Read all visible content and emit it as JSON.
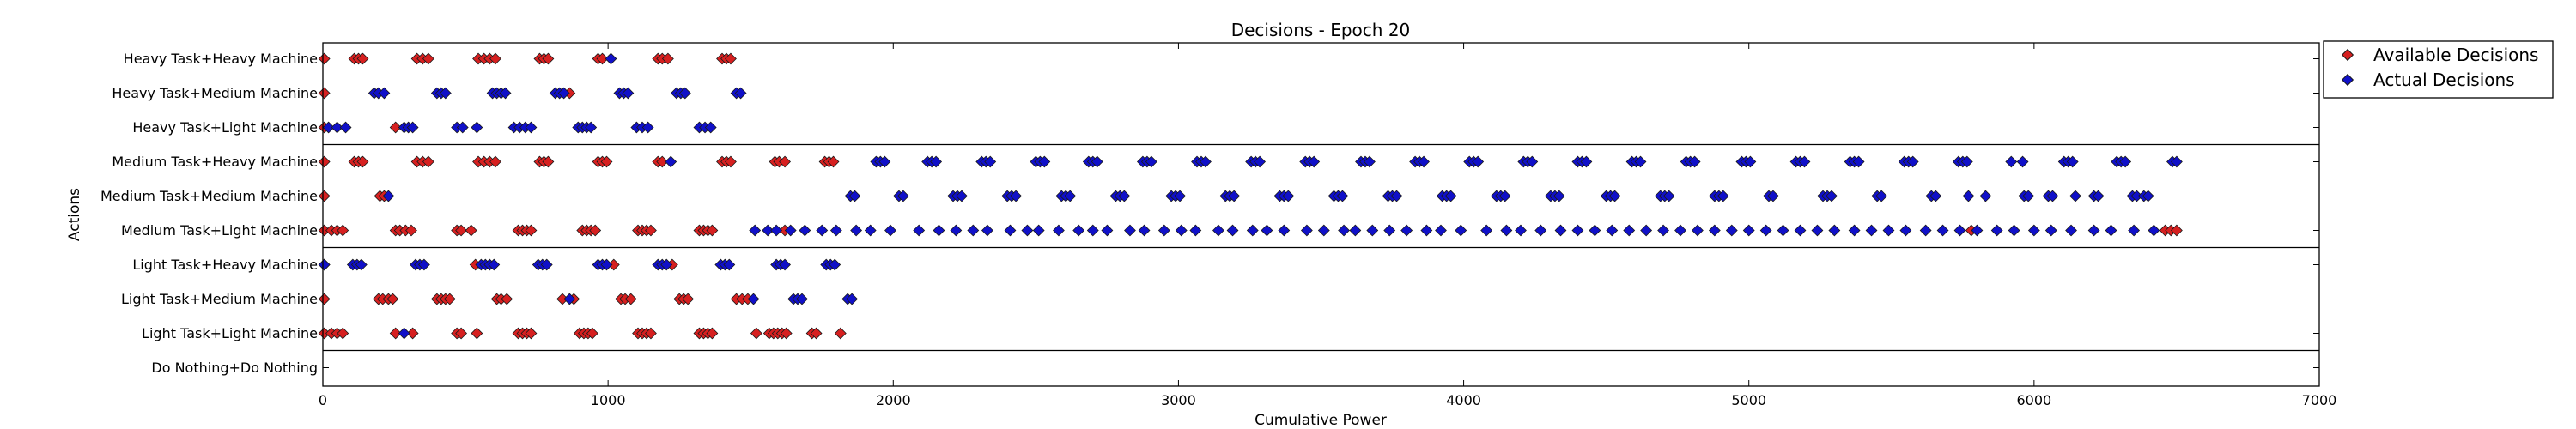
{
  "chart_data": {
    "type": "scatter",
    "title": "Decisions - Epoch 20",
    "xlabel": "Cumulative Power",
    "ylabel": "Actions",
    "xlim": [
      0,
      7000
    ],
    "x_ticks": [
      0,
      1000,
      2000,
      3000,
      4000,
      5000,
      6000,
      7000
    ],
    "categories": [
      "Heavy Task+Heavy Machine",
      "Heavy Task+Medium Machine",
      "Heavy Task+Light Machine",
      "Medium Task+Heavy Machine",
      "Medium Task+Medium Machine",
      "Medium Task+Light Machine",
      "Light Task+Heavy Machine",
      "Light Task+Medium Machine",
      "Light Task+Light Machine",
      "Do Nothing+Do Nothing"
    ],
    "group_separators_after": [
      2,
      5,
      8
    ],
    "legend_position": "outside-right-top",
    "colors": {
      "available": "#d62020",
      "actual": "#1010c8",
      "marker_edge": "#1a1a1a"
    },
    "series": [
      {
        "name": "Available Decisions",
        "points": [
          {
            "cat": 0,
            "x": [
              5,
              110,
              125,
              140,
              330,
              350,
              370,
              545,
              565,
              585,
              605,
              760,
              775,
              790,
              965,
              980,
              1175,
              1190,
              1210,
              1400,
              1415,
              1430
            ]
          },
          {
            "cat": 1,
            "x": [
              5,
              865
            ]
          },
          {
            "cat": 2,
            "x": [
              5,
              255
            ]
          },
          {
            "cat": 3,
            "x": [
              5,
              110,
              125,
              140,
              330,
              350,
              370,
              545,
              565,
              585,
              605,
              760,
              775,
              790,
              965,
              980,
              995,
              1175,
              1190,
              1400,
              1415,
              1430,
              1585,
              1600,
              1620,
              1760,
              1775,
              1790
            ]
          },
          {
            "cat": 4,
            "x": [
              5,
              200,
              215
            ]
          },
          {
            "cat": 5,
            "x": [
              5,
              30,
              50,
              70,
              255,
              270,
              290,
              310,
              470,
              485,
              520,
              685,
              700,
              715,
              730,
              910,
              925,
              940,
              955,
              1105,
              1120,
              1135,
              1150,
              1320,
              1335,
              1350,
              1365,
              1620,
              5780,
              6460,
              6480,
              6500
            ]
          },
          {
            "cat": 6,
            "x": [
              5,
              535,
              1020,
              1225
            ]
          },
          {
            "cat": 7,
            "x": [
              5,
              195,
              210,
              230,
              245,
              400,
              415,
              430,
              445,
              610,
              625,
              645,
              840,
              880,
              1045,
              1060,
              1080,
              1250,
              1265,
              1280,
              1450,
              1470,
              1490
            ]
          },
          {
            "cat": 8,
            "x": [
              5,
              30,
              50,
              70,
              255,
              315,
              470,
              485,
              540,
              685,
              700,
              715,
              730,
              900,
              915,
              930,
              945,
              1105,
              1120,
              1135,
              1150,
              1320,
              1335,
              1350,
              1365,
              1520,
              1565,
              1580,
              1595,
              1610,
              1625,
              1715,
              1730,
              1815
            ]
          }
        ]
      },
      {
        "name": "Actual Decisions",
        "points": [
          {
            "cat": 0,
            "x": [
              1010
            ]
          },
          {
            "cat": 1,
            "x": [
              180,
              195,
              215,
              400,
              415,
              430,
              595,
              610,
              625,
              640,
              815,
              830,
              845,
              1040,
              1055,
              1070,
              1240,
              1255,
              1270,
              1450,
              1465
            ]
          },
          {
            "cat": 2,
            "x": [
              20,
              50,
              80,
              285,
              300,
              315,
              470,
              490,
              540,
              670,
              690,
              710,
              730,
              895,
              910,
              925,
              940,
              1100,
              1120,
              1140,
              1320,
              1340,
              1360
            ]
          },
          {
            "cat": 3,
            "x": [
              1220,
              1940,
              1955,
              1970,
              2120,
              2135,
              2150,
              2310,
              2325,
              2340,
              2500,
              2515,
              2530,
              2685,
              2700,
              2715,
              2875,
              2890,
              2905,
              3065,
              3080,
              3095,
              3255,
              3270,
              3285,
              3445,
              3460,
              3475,
              3640,
              3655,
              3670,
              3830,
              3845,
              3860,
              4020,
              4035,
              4050,
              4210,
              4225,
              4240,
              4400,
              4415,
              4430,
              4590,
              4605,
              4620,
              4780,
              4795,
              4810,
              4975,
              4990,
              5005,
              5165,
              5180,
              5195,
              5355,
              5370,
              5385,
              5545,
              5560,
              5575,
              5735,
              5750,
              5765,
              5920,
              5960,
              6105,
              6120,
              6135,
              6290,
              6305,
              6320,
              6485,
              6500
            ]
          },
          {
            "cat": 4,
            "x": [
              230,
              1850,
              1865,
              2020,
              2035,
              2210,
              2225,
              2240,
              2400,
              2415,
              2430,
              2590,
              2605,
              2620,
              2780,
              2795,
              2810,
              2975,
              2990,
              3005,
              3165,
              3180,
              3195,
              3355,
              3370,
              3385,
              3545,
              3560,
              3575,
              3735,
              3750,
              3765,
              3925,
              3940,
              3955,
              4115,
              4130,
              4145,
              4305,
              4320,
              4335,
              4500,
              4515,
              4530,
              4690,
              4705,
              4720,
              4880,
              4895,
              4910,
              5070,
              5085,
              5260,
              5275,
              5290,
              5450,
              5465,
              5640,
              5655,
              5770,
              5830,
              5965,
              5980,
              6050,
              6065,
              6145,
              6210,
              6225,
              6345,
              6360,
              6385,
              6400
            ]
          },
          {
            "cat": 5,
            "x": [
              1515,
              1560,
              1590,
              1640,
              1690,
              1750,
              1800,
              1870,
              1920,
              1990,
              2090,
              2160,
              2220,
              2280,
              2330,
              2410,
              2470,
              2510,
              2580,
              2650,
              2700,
              2750,
              2830,
              2880,
              2950,
              3010,
              3060,
              3140,
              3190,
              3260,
              3310,
              3370,
              3450,
              3510,
              3580,
              3620,
              3680,
              3740,
              3800,
              3870,
              3920,
              3990,
              4080,
              4150,
              4200,
              4270,
              4340,
              4400,
              4460,
              4520,
              4580,
              4640,
              4700,
              4760,
              4820,
              4880,
              4940,
              5000,
              5060,
              5120,
              5180,
              5240,
              5300,
              5370,
              5430,
              5490,
              5550,
              5620,
              5680,
              5740,
              5800,
              5870,
              5930,
              6000,
              6060,
              6130,
              6210,
              6270,
              6350,
              6420
            ]
          },
          {
            "cat": 6,
            "x": [
              5,
              105,
              120,
              135,
              325,
              340,
              355,
              555,
              570,
              585,
              600,
              755,
              770,
              785,
              965,
              980,
              995,
              1175,
              1190,
              1205,
              1395,
              1410,
              1425,
              1590,
              1605,
              1620,
              1765,
              1780,
              1795
            ]
          },
          {
            "cat": 7,
            "x": [
              865,
              1510,
              1650,
              1665,
              1680,
              1840,
              1855
            ]
          },
          {
            "cat": 8,
            "x": [
              285
            ]
          }
        ]
      }
    ]
  }
}
